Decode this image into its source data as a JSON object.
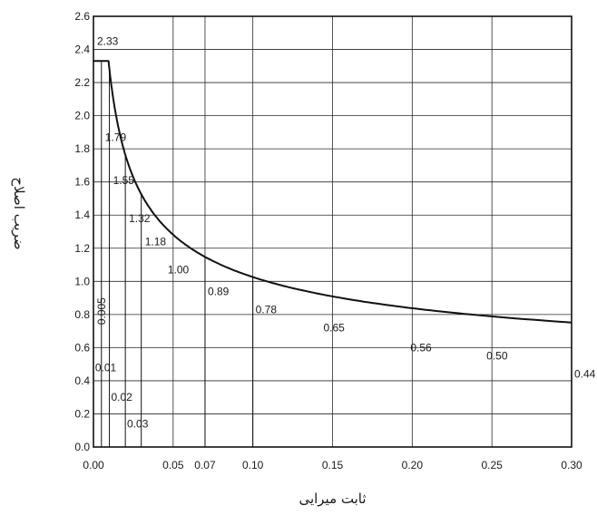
{
  "chart_data": {
    "type": "line",
    "xlabel": "ثابت میرایی",
    "ylabel": "ضریب اصلاح",
    "xlim": [
      0,
      0.3
    ],
    "ylim": [
      0,
      2.6
    ],
    "x_ticks": [
      "0.00",
      "0.05",
      "0.07",
      "0.10",
      "0.15",
      "0.20",
      "0.25",
      "0.30"
    ],
    "y_ticks": [
      "0.0",
      "0.2",
      "0.4",
      "0.6",
      "0.8",
      "1.0",
      "1.2",
      "1.4",
      "1.6",
      "1.8",
      "2.0",
      "2.2",
      "2.4",
      "2.6"
    ],
    "grid": true,
    "x": [
      0.0,
      0.005,
      0.01,
      0.02,
      0.03,
      0.05,
      0.07,
      0.1,
      0.15,
      0.2,
      0.25,
      0.3
    ],
    "values": [
      2.33,
      1.79,
      1.55,
      1.32,
      1.18,
      1.0,
      0.89,
      0.78,
      0.65,
      0.56,
      0.5,
      0.44
    ],
    "value_labels": [
      "2.33",
      "1.79",
      "1.55",
      "1.32",
      "1.18",
      "1.00",
      "0.89",
      "0.78",
      "0.65",
      "0.56",
      "0.50",
      "0.44"
    ],
    "callouts": [
      {
        "x": 0.005,
        "label": "0.005"
      },
      {
        "x": 0.01,
        "label": "0.01"
      },
      {
        "x": 0.02,
        "label": "0.02"
      },
      {
        "x": 0.03,
        "label": "0.03"
      }
    ]
  }
}
